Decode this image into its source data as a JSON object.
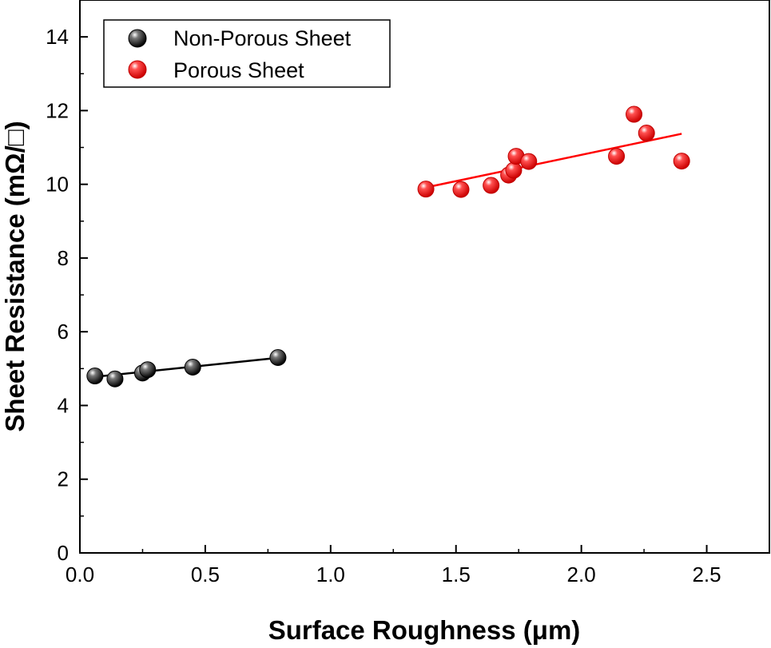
{
  "chart_data": {
    "type": "scatter",
    "title": "",
    "xlabel": "Surface Roughness (μm)",
    "ylabel": "Sheet Resistance (mΩ/□)",
    "xlim": [
      0.0,
      2.75
    ],
    "ylim": [
      0,
      15
    ],
    "x_ticks": [
      "0.0",
      "0.5",
      "1.0",
      "1.5",
      "2.0",
      "2.5"
    ],
    "x_tick_values": [
      0.0,
      0.5,
      1.0,
      1.5,
      2.0,
      2.5
    ],
    "y_ticks": [
      "0",
      "2",
      "4",
      "6",
      "8",
      "10",
      "12",
      "14"
    ],
    "y_tick_values": [
      0,
      2,
      4,
      6,
      8,
      10,
      12,
      14
    ],
    "grid": false,
    "legend_position": "top-left",
    "series": [
      {
        "name": "Non-Porous Sheet",
        "color": "#000000",
        "points": [
          {
            "x": 0.06,
            "y": 4.8
          },
          {
            "x": 0.14,
            "y": 4.72
          },
          {
            "x": 0.25,
            "y": 4.88
          },
          {
            "x": 0.27,
            "y": 4.97
          },
          {
            "x": 0.45,
            "y": 5.04
          },
          {
            "x": 0.79,
            "y": 5.3
          }
        ],
        "fit": {
          "x": [
            0.05,
            0.8
          ],
          "y": [
            4.77,
            5.3
          ]
        }
      },
      {
        "name": "Porous Sheet",
        "color": "#ff0000",
        "points": [
          {
            "x": 1.38,
            "y": 9.87
          },
          {
            "x": 1.52,
            "y": 9.86
          },
          {
            "x": 1.64,
            "y": 9.97
          },
          {
            "x": 1.71,
            "y": 10.25
          },
          {
            "x": 1.73,
            "y": 10.38
          },
          {
            "x": 1.74,
            "y": 10.76
          },
          {
            "x": 1.79,
            "y": 10.62
          },
          {
            "x": 2.14,
            "y": 10.76
          },
          {
            "x": 2.21,
            "y": 11.9
          },
          {
            "x": 2.26,
            "y": 11.39
          },
          {
            "x": 2.4,
            "y": 10.63
          }
        ],
        "fit": {
          "x": [
            1.37,
            2.4
          ],
          "y": [
            9.9,
            11.37
          ]
        }
      }
    ]
  }
}
